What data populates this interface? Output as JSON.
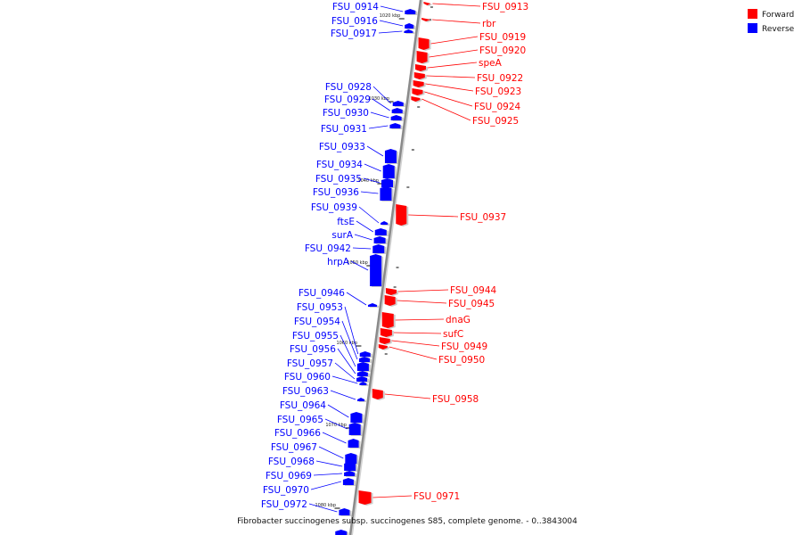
{
  "caption": "Fibrobacter succinogenes subsp. succinogenes S85, complete genome. - 0..3843004",
  "legend": [
    {
      "label": "Forward",
      "color": "#ff0000"
    },
    {
      "label": "Reverse",
      "color": "#0000ff"
    }
  ],
  "colors": {
    "forward": "#ff0000",
    "reverse": "#0000ff",
    "backbone": "#8a8a8a"
  },
  "kbp_ticks": [
    {
      "label": "1020 kbp"
    },
    {
      "label": "1030 kbp"
    },
    {
      "label": "1040 kbp"
    },
    {
      "label": "1050 kbp"
    },
    {
      "label": "1060 kbp"
    },
    {
      "label": "1070 kbp"
    },
    {
      "label": "1080 kbp"
    }
  ],
  "genes": {
    "forward": [
      "FSU_0913",
      "rbr",
      "FSU_0919",
      "FSU_0920",
      "speA",
      "FSU_0922",
      "FSU_0923",
      "FSU_0924",
      "FSU_0925",
      "FSU_0937",
      "FSU_0944",
      "FSU_0945",
      "dnaG",
      "sufC",
      "FSU_0949",
      "FSU_0950",
      "FSU_0958",
      "FSU_0971"
    ],
    "reverse": [
      "FSU_0914",
      "FSU_0916",
      "FSU_0917",
      "FSU_0928",
      "FSU_0929",
      "FSU_0930",
      "FSU_0931",
      "FSU_0933",
      "FSU_0934",
      "FSU_0935",
      "FSU_0936",
      "FSU_0939",
      "ftsE",
      "surA",
      "FSU_0942",
      "hrpA",
      "FSU_0946",
      "FSU_0953",
      "FSU_0954",
      "FSU_0955",
      "FSU_0956",
      "FSU_0957",
      "FSU_0960",
      "FSU_0963",
      "FSU_0964",
      "FSU_0965",
      "FSU_0966",
      "FSU_0967",
      "FSU_0968",
      "FSU_0969",
      "FSU_0970",
      "FSU_0972"
    ]
  }
}
